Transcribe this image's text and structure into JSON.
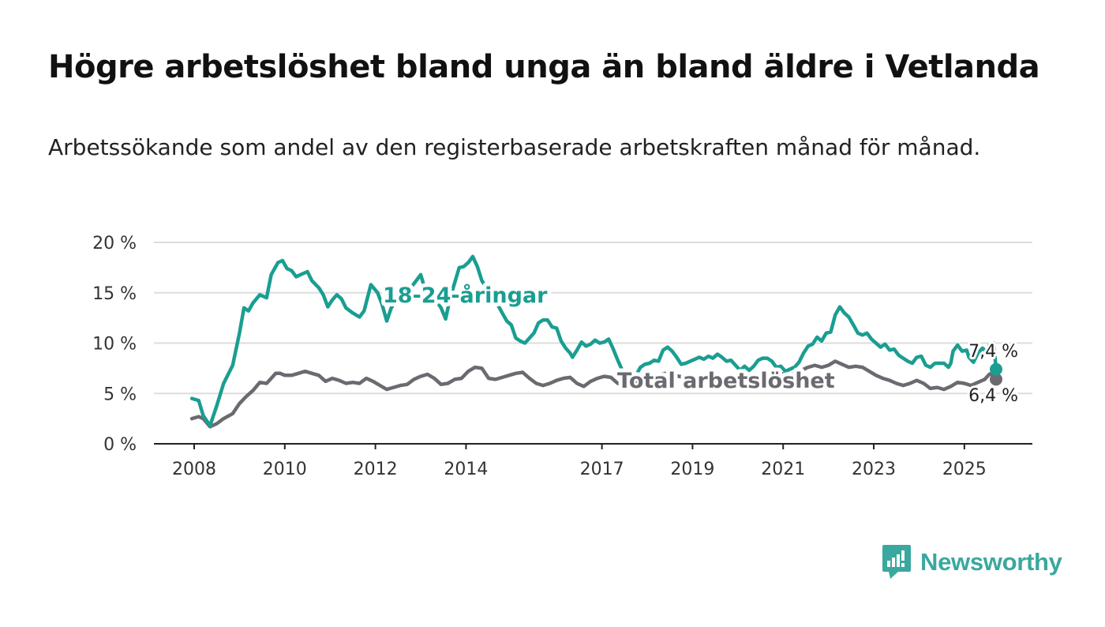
{
  "title": "Högre arbetslöshet bland unga än bland äldre i Vetlanda",
  "subtitle": "Arbetssökande som andel av den registerbaserade arbetskraften månad för månad.",
  "brand": {
    "name": "Newsworthy",
    "color": "#3aa89e"
  },
  "chart_data": {
    "type": "line",
    "ylim": [
      0,
      20
    ],
    "xlim": [
      2008,
      2025.7
    ],
    "y_ticks": [
      {
        "value": 0,
        "label": "0 %"
      },
      {
        "value": 5,
        "label": "5 %"
      },
      {
        "value": 10,
        "label": "10 %"
      },
      {
        "value": 15,
        "label": "15 %"
      },
      {
        "value": 20,
        "label": "20 %"
      }
    ],
    "x_ticks": [
      {
        "value": 2008,
        "label": "2008"
      },
      {
        "value": 2010,
        "label": "2010"
      },
      {
        "value": 2012,
        "label": "2012"
      },
      {
        "value": 2014,
        "label": "2014"
      },
      {
        "value": 2017,
        "label": "2017"
      },
      {
        "value": 2019,
        "label": "2019"
      },
      {
        "value": 2021,
        "label": "2021"
      },
      {
        "value": 2023,
        "label": "2023"
      },
      {
        "value": 2025,
        "label": "2025"
      }
    ],
    "grid": true,
    "legend": "inline labels",
    "series": [
      {
        "name": "18-24-åringar",
        "color": "#1a9e91",
        "end_label": "7,4 %",
        "points": [
          [
            2007.95,
            4.5
          ],
          [
            2008.1,
            4.3
          ],
          [
            2008.2,
            2.8
          ],
          [
            2008.35,
            1.8
          ],
          [
            2008.5,
            3.8
          ],
          [
            2008.65,
            6.0
          ],
          [
            2008.85,
            7.8
          ],
          [
            2009.0,
            11.0
          ],
          [
            2009.1,
            13.5
          ],
          [
            2009.2,
            13.2
          ],
          [
            2009.3,
            14.0
          ],
          [
            2009.45,
            14.8
          ],
          [
            2009.6,
            14.5
          ],
          [
            2009.7,
            16.8
          ],
          [
            2009.85,
            18.0
          ],
          [
            2009.95,
            18.2
          ],
          [
            2010.05,
            17.4
          ],
          [
            2010.15,
            17.2
          ],
          [
            2010.25,
            16.6
          ],
          [
            2010.4,
            16.9
          ],
          [
            2010.5,
            17.1
          ],
          [
            2010.6,
            16.2
          ],
          [
            2010.75,
            15.5
          ],
          [
            2010.85,
            14.8
          ],
          [
            2010.95,
            13.6
          ],
          [
            2011.05,
            14.3
          ],
          [
            2011.15,
            14.8
          ],
          [
            2011.25,
            14.4
          ],
          [
            2011.35,
            13.5
          ],
          [
            2011.5,
            13.0
          ],
          [
            2011.65,
            12.6
          ],
          [
            2011.75,
            13.2
          ],
          [
            2011.9,
            15.8
          ],
          [
            2012.05,
            15.0
          ],
          [
            2012.15,
            13.8
          ],
          [
            2012.25,
            12.2
          ],
          [
            2012.35,
            13.5
          ],
          [
            2012.45,
            14.2
          ],
          [
            2012.55,
            14.8
          ],
          [
            2012.65,
            15.3
          ],
          [
            2012.8,
            15.6
          ],
          [
            2012.9,
            16.2
          ],
          [
            2013.0,
            16.8
          ],
          [
            2013.1,
            15.3
          ],
          [
            2013.2,
            15.8
          ],
          [
            2013.3,
            14.5
          ],
          [
            2013.45,
            13.5
          ],
          [
            2013.55,
            12.4
          ],
          [
            2013.65,
            14.5
          ],
          [
            2013.75,
            16.0
          ],
          [
            2013.85,
            17.5
          ],
          [
            2013.95,
            17.6
          ],
          [
            2014.05,
            18.0
          ],
          [
            2014.15,
            18.6
          ],
          [
            2014.25,
            17.6
          ],
          [
            2014.35,
            16.2
          ],
          [
            2014.5,
            15.2
          ],
          [
            2014.6,
            14.5
          ],
          [
            2014.7,
            13.8
          ],
          [
            2014.8,
            13.0
          ],
          [
            2014.9,
            12.2
          ],
          [
            2015.0,
            11.8
          ],
          [
            2015.1,
            10.5
          ],
          [
            2015.2,
            10.2
          ],
          [
            2015.3,
            10.0
          ],
          [
            2015.4,
            10.5
          ],
          [
            2015.5,
            11.0
          ],
          [
            2015.6,
            12.0
          ],
          [
            2015.7,
            12.3
          ],
          [
            2015.8,
            12.3
          ],
          [
            2015.9,
            11.6
          ],
          [
            2016.0,
            11.5
          ],
          [
            2016.1,
            10.2
          ],
          [
            2016.2,
            9.5
          ],
          [
            2016.3,
            9.0
          ],
          [
            2016.35,
            8.6
          ],
          [
            2016.45,
            9.3
          ],
          [
            2016.55,
            10.1
          ],
          [
            2016.65,
            9.7
          ],
          [
            2016.75,
            9.9
          ],
          [
            2016.85,
            10.3
          ],
          [
            2016.95,
            10.0
          ],
          [
            2017.05,
            10.1
          ],
          [
            2017.15,
            10.4
          ],
          [
            2017.25,
            9.4
          ],
          [
            2017.35,
            8.3
          ],
          [
            2017.45,
            7.3
          ],
          [
            2017.55,
            7.2
          ],
          [
            2017.65,
            7.3
          ],
          [
            2017.75,
            6.8
          ],
          [
            2017.85,
            7.6
          ],
          [
            2017.95,
            7.9
          ],
          [
            2018.05,
            8.0
          ],
          [
            2018.15,
            8.3
          ],
          [
            2018.25,
            8.2
          ],
          [
            2018.35,
            9.3
          ],
          [
            2018.45,
            9.6
          ],
          [
            2018.55,
            9.2
          ],
          [
            2018.65,
            8.6
          ],
          [
            2018.75,
            7.9
          ],
          [
            2018.85,
            8.0
          ],
          [
            2018.95,
            8.2
          ],
          [
            2019.05,
            8.4
          ],
          [
            2019.15,
            8.6
          ],
          [
            2019.25,
            8.4
          ],
          [
            2019.35,
            8.7
          ],
          [
            2019.45,
            8.5
          ],
          [
            2019.55,
            8.9
          ],
          [
            2019.65,
            8.6
          ],
          [
            2019.75,
            8.2
          ],
          [
            2019.85,
            8.3
          ],
          [
            2019.95,
            7.8
          ],
          [
            2020.05,
            7.3
          ],
          [
            2020.15,
            7.7
          ],
          [
            2020.25,
            7.3
          ],
          [
            2020.35,
            7.7
          ],
          [
            2020.45,
            8.3
          ],
          [
            2020.55,
            8.5
          ],
          [
            2020.65,
            8.5
          ],
          [
            2020.75,
            8.2
          ],
          [
            2020.85,
            7.6
          ],
          [
            2020.95,
            7.7
          ],
          [
            2021.05,
            7.2
          ],
          [
            2021.15,
            7.4
          ],
          [
            2021.25,
            7.6
          ],
          [
            2021.35,
            8.1
          ],
          [
            2021.45,
            9.0
          ],
          [
            2021.55,
            9.7
          ],
          [
            2021.65,
            9.9
          ],
          [
            2021.75,
            10.6
          ],
          [
            2021.85,
            10.2
          ],
          [
            2021.95,
            11.0
          ],
          [
            2022.05,
            11.1
          ],
          [
            2022.15,
            12.8
          ],
          [
            2022.25,
            13.6
          ],
          [
            2022.35,
            13.0
          ],
          [
            2022.45,
            12.6
          ],
          [
            2022.55,
            11.8
          ],
          [
            2022.65,
            11.0
          ],
          [
            2022.75,
            10.8
          ],
          [
            2022.85,
            11.0
          ],
          [
            2022.95,
            10.4
          ],
          [
            2023.05,
            10.0
          ],
          [
            2023.15,
            9.6
          ],
          [
            2023.25,
            9.9
          ],
          [
            2023.35,
            9.3
          ],
          [
            2023.45,
            9.4
          ],
          [
            2023.55,
            8.8
          ],
          [
            2023.65,
            8.5
          ],
          [
            2023.75,
            8.2
          ],
          [
            2023.85,
            8.0
          ],
          [
            2023.95,
            8.6
          ],
          [
            2024.05,
            8.7
          ],
          [
            2024.15,
            7.8
          ],
          [
            2024.25,
            7.6
          ],
          [
            2024.35,
            8.0
          ],
          [
            2024.45,
            8.0
          ],
          [
            2024.55,
            8.0
          ],
          [
            2024.65,
            7.6
          ],
          [
            2024.7,
            8.0
          ],
          [
            2024.75,
            9.2
          ],
          [
            2024.85,
            9.8
          ],
          [
            2024.95,
            9.2
          ],
          [
            2025.05,
            9.3
          ],
          [
            2025.1,
            8.6
          ],
          [
            2025.2,
            8.1
          ],
          [
            2025.3,
            9.0
          ],
          [
            2025.4,
            9.5
          ],
          [
            2025.5,
            9.1
          ],
          [
            2025.55,
            9.8
          ],
          [
            2025.6,
            9.4
          ],
          [
            2025.65,
            10.0
          ],
          [
            2025.7,
            7.4
          ]
        ]
      },
      {
        "name": "Total arbetslöshet",
        "color": "#6b6a70",
        "end_label": "6,4 %",
        "points": [
          [
            2007.95,
            2.5
          ],
          [
            2008.1,
            2.7
          ],
          [
            2008.2,
            2.5
          ],
          [
            2008.35,
            1.7
          ],
          [
            2008.5,
            2.0
          ],
          [
            2008.65,
            2.5
          ],
          [
            2008.85,
            3.0
          ],
          [
            2009.0,
            4.0
          ],
          [
            2009.15,
            4.7
          ],
          [
            2009.3,
            5.3
          ],
          [
            2009.45,
            6.1
          ],
          [
            2009.6,
            6.0
          ],
          [
            2009.7,
            6.5
          ],
          [
            2009.8,
            7.0
          ],
          [
            2009.9,
            7.0
          ],
          [
            2010.0,
            6.8
          ],
          [
            2010.15,
            6.8
          ],
          [
            2010.3,
            7.0
          ],
          [
            2010.45,
            7.2
          ],
          [
            2010.6,
            7.0
          ],
          [
            2010.75,
            6.8
          ],
          [
            2010.9,
            6.2
          ],
          [
            2011.05,
            6.5
          ],
          [
            2011.2,
            6.3
          ],
          [
            2011.35,
            6.0
          ],
          [
            2011.5,
            6.1
          ],
          [
            2011.65,
            6.0
          ],
          [
            2011.8,
            6.5
          ],
          [
            2011.95,
            6.2
          ],
          [
            2012.1,
            5.8
          ],
          [
            2012.25,
            5.4
          ],
          [
            2012.4,
            5.6
          ],
          [
            2012.55,
            5.8
          ],
          [
            2012.7,
            5.9
          ],
          [
            2012.85,
            6.4
          ],
          [
            2013.0,
            6.7
          ],
          [
            2013.15,
            6.9
          ],
          [
            2013.3,
            6.5
          ],
          [
            2013.45,
            5.9
          ],
          [
            2013.6,
            6.0
          ],
          [
            2013.75,
            6.4
          ],
          [
            2013.9,
            6.5
          ],
          [
            2014.05,
            7.2
          ],
          [
            2014.2,
            7.6
          ],
          [
            2014.35,
            7.5
          ],
          [
            2014.5,
            6.5
          ],
          [
            2014.65,
            6.4
          ],
          [
            2014.8,
            6.6
          ],
          [
            2014.95,
            6.8
          ],
          [
            2015.1,
            7.0
          ],
          [
            2015.25,
            7.1
          ],
          [
            2015.4,
            6.5
          ],
          [
            2015.55,
            6.0
          ],
          [
            2015.7,
            5.8
          ],
          [
            2015.85,
            6.0
          ],
          [
            2016.0,
            6.3
          ],
          [
            2016.15,
            6.5
          ],
          [
            2016.3,
            6.6
          ],
          [
            2016.45,
            6.0
          ],
          [
            2016.6,
            5.7
          ],
          [
            2016.75,
            6.2
          ],
          [
            2016.9,
            6.5
          ],
          [
            2017.05,
            6.7
          ],
          [
            2017.2,
            6.6
          ],
          [
            2017.35,
            6.0
          ],
          [
            2017.5,
            5.8
          ],
          [
            2017.65,
            5.9
          ],
          [
            2017.8,
            6.1
          ],
          [
            2017.95,
            6.4
          ],
          [
            2018.1,
            6.5
          ],
          [
            2018.25,
            6.9
          ],
          [
            2018.4,
            7.0
          ],
          [
            2018.55,
            6.9
          ],
          [
            2018.7,
            6.7
          ],
          [
            2018.85,
            6.6
          ],
          [
            2019.0,
            6.7
          ],
          [
            2019.15,
            6.6
          ],
          [
            2019.3,
            6.5
          ],
          [
            2019.45,
            6.4
          ],
          [
            2019.6,
            6.3
          ],
          [
            2019.75,
            6.1
          ],
          [
            2019.9,
            6.2
          ],
          [
            2020.05,
            6.5
          ],
          [
            2020.2,
            6.6
          ],
          [
            2020.35,
            6.7
          ],
          [
            2020.5,
            6.4
          ],
          [
            2020.65,
            6.6
          ],
          [
            2020.8,
            6.9
          ],
          [
            2020.95,
            7.0
          ],
          [
            2021.1,
            6.8
          ],
          [
            2021.25,
            7.0
          ],
          [
            2021.4,
            7.3
          ],
          [
            2021.55,
            7.6
          ],
          [
            2021.7,
            7.8
          ],
          [
            2021.85,
            7.6
          ],
          [
            2022.0,
            7.8
          ],
          [
            2022.15,
            8.2
          ],
          [
            2022.3,
            7.9
          ],
          [
            2022.45,
            7.6
          ],
          [
            2022.6,
            7.7
          ],
          [
            2022.75,
            7.6
          ],
          [
            2022.9,
            7.2
          ],
          [
            2023.05,
            6.8
          ],
          [
            2023.2,
            6.5
          ],
          [
            2023.35,
            6.3
          ],
          [
            2023.5,
            6.0
          ],
          [
            2023.65,
            5.8
          ],
          [
            2023.8,
            6.0
          ],
          [
            2023.95,
            6.3
          ],
          [
            2024.1,
            6.0
          ],
          [
            2024.25,
            5.5
          ],
          [
            2024.4,
            5.6
          ],
          [
            2024.55,
            5.4
          ],
          [
            2024.7,
            5.7
          ],
          [
            2024.85,
            6.1
          ],
          [
            2025.0,
            6.0
          ],
          [
            2025.15,
            5.8
          ],
          [
            2025.3,
            6.1
          ],
          [
            2025.45,
            6.4
          ],
          [
            2025.55,
            6.9
          ],
          [
            2025.6,
            7.0
          ],
          [
            2025.65,
            6.2
          ],
          [
            2025.7,
            6.4
          ]
        ]
      }
    ]
  }
}
